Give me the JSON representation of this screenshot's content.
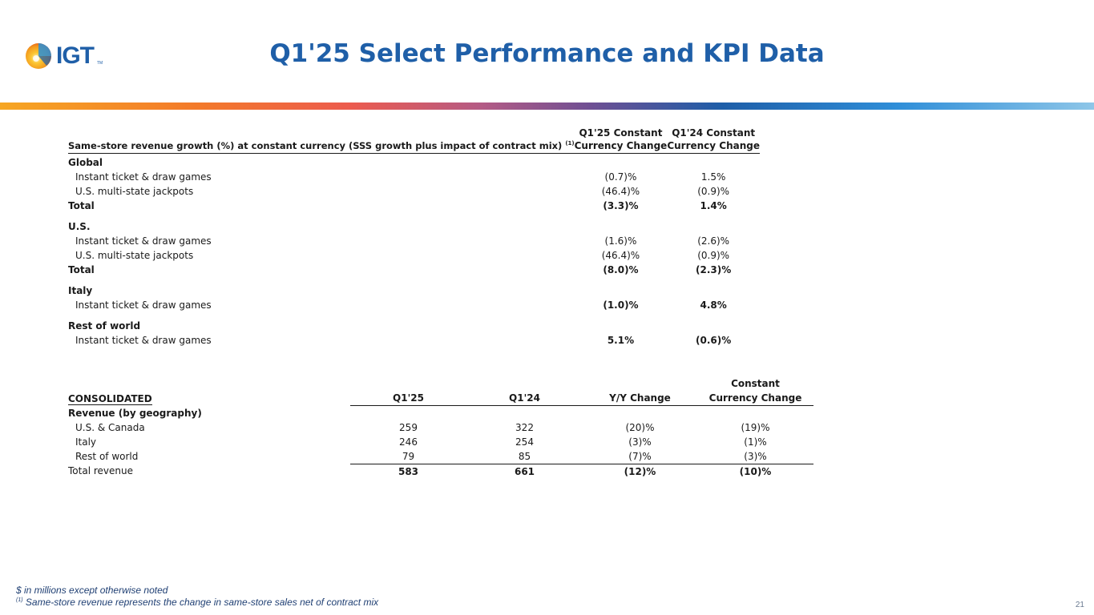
{
  "logo": {
    "text": "IGT",
    "tm": "TM"
  },
  "title": "Q1'25 Select Performance and KPI Data",
  "colors": {
    "brand_blue": "#1f5fa8",
    "footer_blue": "#1f3f73"
  },
  "sss_table": {
    "header_label": "Same-store revenue growth (%) at constant currency (SSS growth plus impact of contract mix)",
    "header_note": "(1)",
    "col1_line1": "Q1'25 Constant",
    "col1_line2": "Currency Change",
    "col2_line1": "Q1'24 Constant",
    "col2_line2": "Currency Change",
    "rows": [
      {
        "label": "Global",
        "c1": "",
        "c2": "",
        "bold": true,
        "section": true
      },
      {
        "label": "Instant ticket & draw games",
        "c1": "(0.7)%",
        "c2": "1.5%"
      },
      {
        "label": "U.S. multi-state jackpots",
        "c1": "(46.4)%",
        "c2": "(0.9)%"
      },
      {
        "label": "Total",
        "c1": "(3.3)%",
        "c2": "1.4%",
        "bold": true
      },
      {
        "label": "U.S.",
        "c1": "",
        "c2": "",
        "bold": true,
        "section": true
      },
      {
        "label": "Instant ticket & draw games",
        "c1": "(1.6)%",
        "c2": "(2.6)%"
      },
      {
        "label": "U.S. multi-state jackpots",
        "c1": "(46.4)%",
        "c2": "(0.9)%"
      },
      {
        "label": "Total",
        "c1": "(8.0)%",
        "c2": "(2.3)%",
        "bold": true
      },
      {
        "label": "Italy",
        "c1": "",
        "c2": "",
        "bold": true,
        "section": true
      },
      {
        "label": "Instant ticket & draw games",
        "c1": "(1.0)%",
        "c2": "4.8%"
      },
      {
        "label": "Rest of world",
        "c1": "",
        "c2": "",
        "bold": true,
        "section": true
      },
      {
        "label": "Instant ticket & draw games",
        "c1": "5.1%",
        "c2": "(0.6)%"
      }
    ]
  },
  "consolidated": {
    "label": "CONSOLIDATED",
    "col_q125": "Q1'25",
    "col_q124": "Q1'24",
    "col_yy": "Y/Y Change",
    "col_cc_line1": "Constant",
    "col_cc_line2": "Currency Change",
    "section_label": "Revenue (by geography)",
    "rows": [
      {
        "label": "U.S. & Canada",
        "q125": "259",
        "q124": "322",
        "yy": "(20)%",
        "cc": "(19)%"
      },
      {
        "label": "Italy",
        "q125": "246",
        "q124": "254",
        "yy": "(3)%",
        "cc": "(1)%"
      },
      {
        "label": "Rest of world",
        "q125": "79",
        "q124": "85",
        "yy": "(7)%",
        "cc": "(3)%"
      }
    ],
    "total": {
      "label": "Total revenue",
      "q125": "583",
      "q124": "661",
      "yy": "(12)%",
      "cc": "(10)%"
    }
  },
  "footer": {
    "line1": "$ in millions except otherwise noted",
    "note_mark": "(1)",
    "line2": "Same-store revenue represents the change in same-store sales net of contract  mix"
  },
  "page_number": "21"
}
